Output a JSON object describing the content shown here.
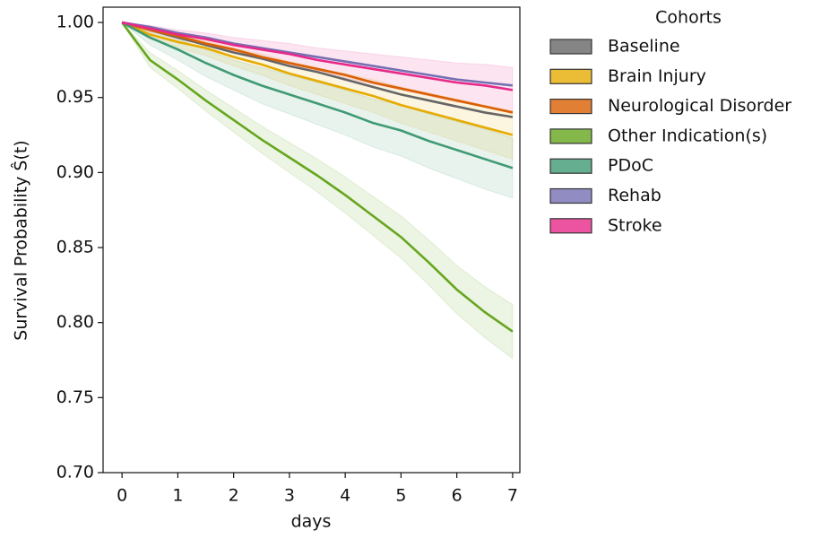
{
  "chart_data": {
    "type": "line",
    "xlabel": "days",
    "ylabel": "Survival Probability Ŝ(t)",
    "x": [
      0,
      0.5,
      1,
      1.5,
      2,
      2.5,
      3,
      3.5,
      4,
      4.5,
      5,
      5.5,
      6,
      6.5,
      7
    ],
    "xlim": [
      -0.34,
      7.13
    ],
    "xticks": [
      0,
      1,
      2,
      3,
      4,
      5,
      6,
      7
    ],
    "ylim": [
      0.7,
      1.0102
    ],
    "yticks": [
      {
        "value": 0.7,
        "label": "0.70"
      },
      {
        "value": 0.75,
        "label": "0.75"
      },
      {
        "value": 0.8,
        "label": "0.80"
      },
      {
        "value": 0.85,
        "label": "0.85"
      },
      {
        "value": 0.9,
        "label": "0.90"
      },
      {
        "value": 0.95,
        "label": "0.95"
      },
      {
        "value": 1.0,
        "label": "1.00"
      }
    ],
    "legend_title": "Cohorts",
    "legend_position": "outside-right",
    "series": [
      {
        "name": "Baseline",
        "color": "#666666",
        "values": [
          1.0,
          0.995,
          0.99,
          0.985,
          0.98,
          0.976,
          0.971,
          0.967,
          0.962,
          0.957,
          0.952,
          0.948,
          0.944,
          0.94,
          0.937
        ]
      },
      {
        "name": "Brain Injury",
        "color": "#e6ab02",
        "values": [
          1.0,
          0.992,
          0.987,
          0.983,
          0.977,
          0.972,
          0.966,
          0.961,
          0.956,
          0.951,
          0.945,
          0.94,
          0.935,
          0.93,
          0.925
        ],
        "lower": [
          1.0,
          0.989,
          0.983,
          0.978,
          0.971,
          0.965,
          0.958,
          0.952,
          0.946,
          0.94,
          0.933,
          0.927,
          0.921,
          0.915,
          0.909
        ],
        "upper": [
          1.0,
          0.995,
          0.991,
          0.988,
          0.983,
          0.979,
          0.974,
          0.97,
          0.966,
          0.962,
          0.957,
          0.953,
          0.949,
          0.945,
          0.941
        ]
      },
      {
        "name": "Neurological Disorder",
        "color": "#d95f02",
        "values": [
          1.0,
          0.995,
          0.991,
          0.986,
          0.982,
          0.977,
          0.973,
          0.969,
          0.965,
          0.96,
          0.956,
          0.952,
          0.948,
          0.944,
          0.94
        ]
      },
      {
        "name": "Other Indication(s)",
        "color": "#66a61e",
        "values": [
          1.0,
          0.975,
          0.962,
          0.948,
          0.935,
          0.922,
          0.91,
          0.898,
          0.885,
          0.871,
          0.857,
          0.84,
          0.822,
          0.807,
          0.794
        ],
        "lower": [
          1.0,
          0.97,
          0.956,
          0.941,
          0.927,
          0.913,
          0.9,
          0.887,
          0.873,
          0.858,
          0.843,
          0.825,
          0.806,
          0.79,
          0.776
        ],
        "upper": [
          1.0,
          0.98,
          0.968,
          0.955,
          0.943,
          0.931,
          0.92,
          0.909,
          0.897,
          0.884,
          0.871,
          0.855,
          0.838,
          0.824,
          0.812
        ]
      },
      {
        "name": "PDoC",
        "color": "#3f9a73",
        "values": [
          1.0,
          0.99,
          0.982,
          0.973,
          0.965,
          0.958,
          0.952,
          0.946,
          0.94,
          0.933,
          0.928,
          0.921,
          0.915,
          0.909,
          0.903
        ],
        "lower": [
          1.0,
          0.985,
          0.975,
          0.964,
          0.955,
          0.946,
          0.939,
          0.932,
          0.925,
          0.917,
          0.911,
          0.903,
          0.896,
          0.889,
          0.883
        ],
        "upper": [
          1.0,
          0.995,
          0.989,
          0.982,
          0.975,
          0.97,
          0.965,
          0.96,
          0.955,
          0.949,
          0.945,
          0.939,
          0.934,
          0.929,
          0.923
        ]
      },
      {
        "name": "Rehab",
        "color": "#7570b3",
        "values": [
          1.0,
          0.997,
          0.993,
          0.99,
          0.986,
          0.983,
          0.98,
          0.977,
          0.974,
          0.971,
          0.968,
          0.965,
          0.962,
          0.96,
          0.958
        ]
      },
      {
        "name": "Stroke",
        "color": "#e7298a",
        "values": [
          1.0,
          0.996,
          0.992,
          0.989,
          0.985,
          0.982,
          0.979,
          0.975,
          0.972,
          0.969,
          0.966,
          0.963,
          0.96,
          0.958,
          0.955
        ],
        "lower": [
          1.0,
          0.994,
          0.989,
          0.985,
          0.98,
          0.976,
          0.972,
          0.967,
          0.963,
          0.959,
          0.955,
          0.951,
          0.947,
          0.944,
          0.94
        ],
        "upper": [
          1.0,
          0.998,
          0.995,
          0.993,
          0.99,
          0.988,
          0.986,
          0.983,
          0.981,
          0.979,
          0.977,
          0.975,
          0.973,
          0.972,
          0.97
        ]
      }
    ]
  }
}
